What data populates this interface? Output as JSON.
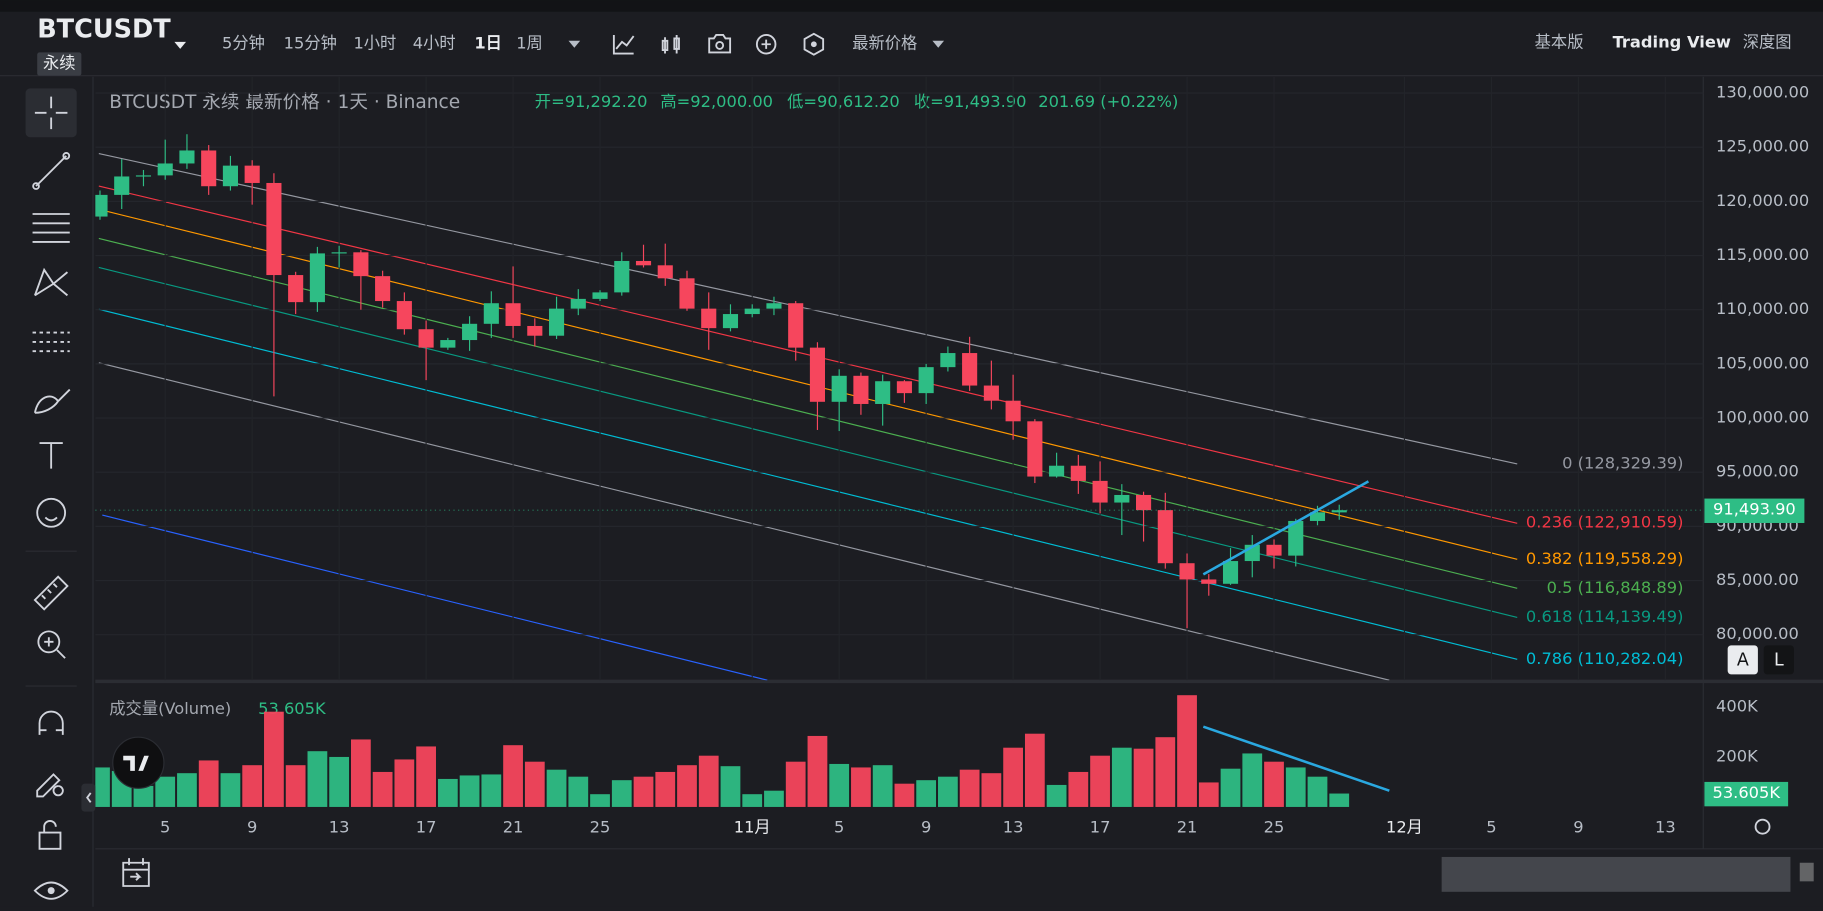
{
  "header": {
    "symbol": "BTCUSDT",
    "contract": "永续",
    "intervals": [
      "5分钟",
      "15分钟",
      "1小时",
      "4小时",
      "1日",
      "1周"
    ],
    "price_type": "最新价格",
    "views": [
      "基本版",
      "Trading View",
      "深度图"
    ]
  },
  "legend": {
    "title": "BTCUSDT 永续 最新价格 · 1天 · Binance",
    "open": "开=91,292.20",
    "high": "高=92,000.00",
    "low": "低=90,612.20",
    "close": "收=91,493.90",
    "change": "201.69 (+0.22%)"
  },
  "fib_levels": [
    {
      "label": "0 (128,329.39)",
      "color": "#9598a1"
    },
    {
      "label": "0.236 (122,910.59)",
      "color": "#f23645"
    },
    {
      "label": "0.382 (119,558.29)",
      "color": "#ff9800"
    },
    {
      "label": "0.5 (116,848.89)",
      "color": "#4caf50"
    },
    {
      "label": "0.618 (114,139.49)",
      "color": "#089981"
    },
    {
      "label": "0.786 (110,282.04)",
      "color": "#00bcd4"
    }
  ],
  "scale_buttons": [
    "A",
    "L"
  ],
  "chart_data": {
    "type": "candlestick",
    "up_color": "#2ebd85",
    "down_color": "#f6465d",
    "grid": true,
    "x": [
      "10-02",
      "10-03",
      "10-04",
      "10-05",
      "10-06",
      "10-07",
      "10-08",
      "10-09",
      "10-10",
      "10-11",
      "10-12",
      "10-13",
      "10-14",
      "10-15",
      "10-16",
      "10-17",
      "10-18",
      "10-19",
      "10-20",
      "10-21",
      "10-22",
      "10-23",
      "10-24",
      "10-25",
      "10-26",
      "10-27",
      "10-28",
      "10-29",
      "10-30",
      "10-31",
      "11-01",
      "11-02",
      "11-03",
      "11-04",
      "11-05",
      "11-06",
      "11-07",
      "11-08",
      "11-09",
      "11-10",
      "11-11",
      "11-12",
      "11-13",
      "11-14",
      "11-15",
      "11-16",
      "11-17",
      "11-18",
      "11-19",
      "11-20",
      "11-21",
      "11-22",
      "11-23",
      "11-24",
      "11-25",
      "11-26",
      "11-27",
      "11-28"
    ],
    "open": [
      118600,
      120600,
      122300,
      122400,
      123500,
      124700,
      121400,
      123300,
      121700,
      113200,
      110700,
      115200,
      115300,
      113100,
      110800,
      108200,
      106500,
      107200,
      108700,
      110600,
      108500,
      107600,
      110100,
      111000,
      111600,
      114500,
      114100,
      112900,
      110100,
      108300,
      109600,
      110100,
      110600,
      106500,
      101500,
      103900,
      101300,
      103400,
      102300,
      104700,
      106000,
      103000,
      101600,
      99700,
      94600,
      95600,
      94200,
      92200,
      92900,
      91500,
      86600,
      85100,
      84700,
      86800,
      88300,
      87300,
      90500,
      91292.2
    ],
    "high": [
      121000,
      123900,
      122900,
      125700,
      126200,
      125200,
      124200,
      123800,
      122600,
      113500,
      115800,
      115900,
      115500,
      113600,
      111600,
      109000,
      107400,
      109400,
      111700,
      114000,
      109200,
      111200,
      111900,
      111800,
      115300,
      116000,
      116100,
      113600,
      111600,
      110500,
      110500,
      111200,
      110800,
      107000,
      104500,
      104200,
      104000,
      103500,
      105000,
      106600,
      107500,
      105300,
      104000,
      99900,
      96800,
      96600,
      96000,
      93900,
      93200,
      93100,
      87500,
      85600,
      88000,
      89200,
      88800,
      90700,
      91900,
      92000
    ],
    "low": [
      118300,
      119300,
      121400,
      122000,
      123000,
      120600,
      121000,
      119700,
      102000,
      109600,
      109800,
      113900,
      110000,
      110200,
      107700,
      103500,
      106300,
      106200,
      107400,
      107400,
      106600,
      107300,
      109500,
      110800,
      111300,
      113900,
      112200,
      109900,
      106300,
      108000,
      109300,
      109500,
      105300,
      98900,
      98800,
      100300,
      99300,
      101400,
      101300,
      104300,
      102500,
      100800,
      98000,
      94000,
      94500,
      93000,
      91200,
      89200,
      88600,
      86100,
      80600,
      83600,
      84600,
      85300,
      86100,
      86300,
      90100,
      90612.2
    ],
    "close": [
      120600,
      122300,
      122400,
      123500,
      124700,
      121400,
      123300,
      121700,
      113200,
      110700,
      115200,
      115300,
      113100,
      110800,
      108200,
      106500,
      107200,
      108700,
      110600,
      108500,
      107600,
      110100,
      111000,
      111600,
      114500,
      114100,
      112900,
      110100,
      108300,
      109600,
      110100,
      110600,
      106500,
      101500,
      103900,
      101300,
      103400,
      102300,
      104700,
      106000,
      103000,
      101600,
      99700,
      94600,
      95600,
      94200,
      92200,
      92900,
      91500,
      86600,
      85100,
      84700,
      86800,
      88300,
      87300,
      90500,
      91300,
      91493.9
    ],
    "ylim": [
      75800,
      131500
    ],
    "yticks": [
      {
        "value": 80000,
        "label": "80,000.00"
      },
      {
        "value": 85000,
        "label": "85,000.00"
      },
      {
        "value": 90000,
        "label": "90,000.00"
      },
      {
        "value": 95000,
        "label": "95,000.00"
      },
      {
        "value": 100000,
        "label": "100,000.00"
      },
      {
        "value": 105000,
        "label": "105,000.00"
      },
      {
        "value": 110000,
        "label": "110,000.00"
      },
      {
        "value": 115000,
        "label": "115,000.00"
      },
      {
        "value": 120000,
        "label": "120,000.00"
      },
      {
        "value": 125000,
        "label": "125,000.00"
      },
      {
        "value": 130000,
        "label": "130,000.00"
      }
    ],
    "xticks": [
      {
        "value": "10-05",
        "label": "5"
      },
      {
        "value": "10-09",
        "label": "9"
      },
      {
        "value": "10-13",
        "label": "13"
      },
      {
        "value": "10-17",
        "label": "17"
      },
      {
        "value": "10-21",
        "label": "21"
      },
      {
        "value": "10-25",
        "label": "25"
      },
      {
        "value": "11-01",
        "label": "11月"
      },
      {
        "value": "11-05",
        "label": "5"
      },
      {
        "value": "11-09",
        "label": "9"
      },
      {
        "value": "11-13",
        "label": "13"
      },
      {
        "value": "11-17",
        "label": "17"
      },
      {
        "value": "11-21",
        "label": "21"
      },
      {
        "value": "11-25",
        "label": "25"
      },
      {
        "value": "12-01",
        "label": "12月"
      },
      {
        "value": "12-05",
        "label": "5"
      },
      {
        "value": "12-09",
        "label": "9"
      },
      {
        "value": "12-13",
        "label": "13"
      }
    ],
    "last_price": {
      "value": 91493.9,
      "label": "91,493.90"
    },
    "volume": {
      "title": "成交量(Volume)",
      "values": [
        158000,
        144000,
        84000,
        121000,
        135000,
        186000,
        135000,
        167000,
        381000,
        167000,
        223000,
        200000,
        270000,
        140000,
        190000,
        242000,
        112000,
        126000,
        130000,
        247000,
        181000,
        149000,
        121000,
        51000,
        107000,
        121000,
        140000,
        167000,
        205000,
        163000,
        51000,
        65000,
        181000,
        284000,
        172000,
        158000,
        167000,
        93000,
        107000,
        121000,
        149000,
        135000,
        237000,
        293000,
        88000,
        140000,
        205000,
        237000,
        233000,
        279000,
        447000,
        98000,
        153000,
        214000,
        181000,
        158000,
        121000,
        53605
      ],
      "last": {
        "value": 53605,
        "label": "53.605K"
      },
      "ylim": [
        0,
        493000
      ],
      "yticks": [
        {
          "value": 200000,
          "label": "200K"
        },
        {
          "value": 400000,
          "label": "400K"
        }
      ]
    }
  }
}
